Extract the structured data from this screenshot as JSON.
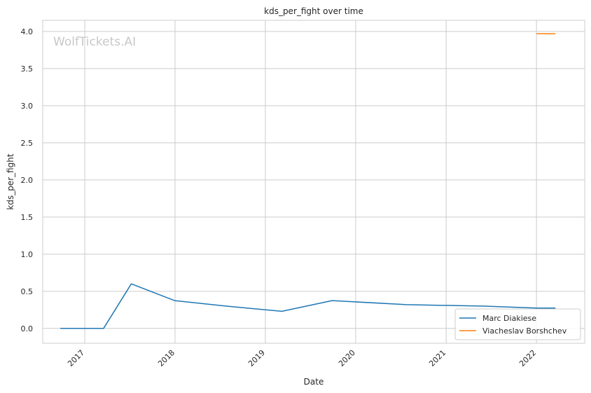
{
  "chart_data": {
    "type": "line",
    "title": "kds_per_fight over time",
    "xlabel": "Date",
    "ylabel": "kds_per_fight",
    "watermark": "WolfTickets.AI",
    "x_ticks": [
      "2017",
      "2018",
      "2019",
      "2020",
      "2021",
      "2022"
    ],
    "y_ticks": [
      "0.0",
      "0.5",
      "1.0",
      "1.5",
      "2.0",
      "2.5",
      "3.0",
      "3.5",
      "4.0"
    ],
    "xlim": [
      "2016-07-15",
      "2022-07-15"
    ],
    "ylim": [
      -0.2,
      4.15
    ],
    "grid": true,
    "legend_position": "lower-right",
    "series": [
      {
        "name": "Marc Diakiese",
        "color": "#1f77b4",
        "points": [
          {
            "x": "2016-09-24",
            "y": 0.0
          },
          {
            "x": "2017-03-18",
            "y": 0.0
          },
          {
            "x": "2017-07-08",
            "y": 0.6
          },
          {
            "x": "2017-12-30",
            "y": 0.375
          },
          {
            "x": "2018-07-28",
            "y": 0.3
          },
          {
            "x": "2019-03-09",
            "y": 0.23
          },
          {
            "x": "2019-09-28",
            "y": 0.375
          },
          {
            "x": "2020-07-25",
            "y": 0.32
          },
          {
            "x": "2021-06-05",
            "y": 0.3
          },
          {
            "x": "2022-01-01",
            "y": 0.275
          },
          {
            "x": "2022-03-19",
            "y": 0.275
          }
        ]
      },
      {
        "name": "Viacheslav Borshchev",
        "color": "#ff7f0e",
        "points": [
          {
            "x": "2022-01-01",
            "y": 3.97
          },
          {
            "x": "2022-03-19",
            "y": 3.97
          }
        ]
      }
    ]
  }
}
